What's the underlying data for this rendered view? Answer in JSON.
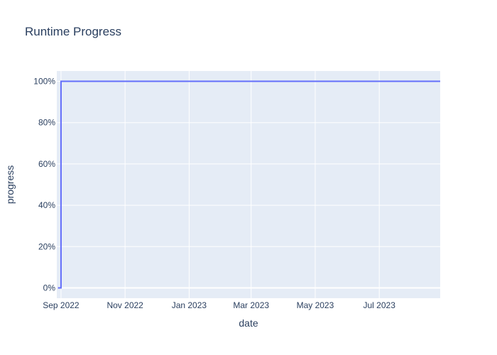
{
  "chart_data": {
    "type": "line",
    "title": "Runtime Progress",
    "xlabel": "date",
    "ylabel": "progress",
    "x_axis_type": "date",
    "xlim": [
      "2022-08-28",
      "2023-08-28"
    ],
    "ylim": [
      -0.05,
      1.05
    ],
    "x_ticks": [
      {
        "value": "2022-09-01",
        "label": "Sep 2022"
      },
      {
        "value": "2022-11-01",
        "label": "Nov 2022"
      },
      {
        "value": "2023-01-01",
        "label": "Jan 2023"
      },
      {
        "value": "2023-03-01",
        "label": "Mar 2023"
      },
      {
        "value": "2023-05-01",
        "label": "May 2023"
      },
      {
        "value": "2023-07-01",
        "label": "Jul 2023"
      }
    ],
    "y_ticks": [
      {
        "value": 0,
        "label": "0%"
      },
      {
        "value": 0.2,
        "label": "20%"
      },
      {
        "value": 0.4,
        "label": "40%"
      },
      {
        "value": 0.6,
        "label": "60%"
      },
      {
        "value": 0.8,
        "label": "80%"
      },
      {
        "value": 1.0,
        "label": "100%"
      }
    ],
    "grid": true,
    "series": [
      {
        "line_shape": "step",
        "color": "#636efa",
        "x": [
          "2022-08-29",
          "2022-09-01",
          "2023-08-28"
        ],
        "y": [
          0,
          1,
          1
        ]
      }
    ]
  },
  "colors": {
    "plot_background": "#e5ecf6",
    "grid": "#ffffff",
    "text": "#2a3f5f",
    "line": "#636efa"
  }
}
